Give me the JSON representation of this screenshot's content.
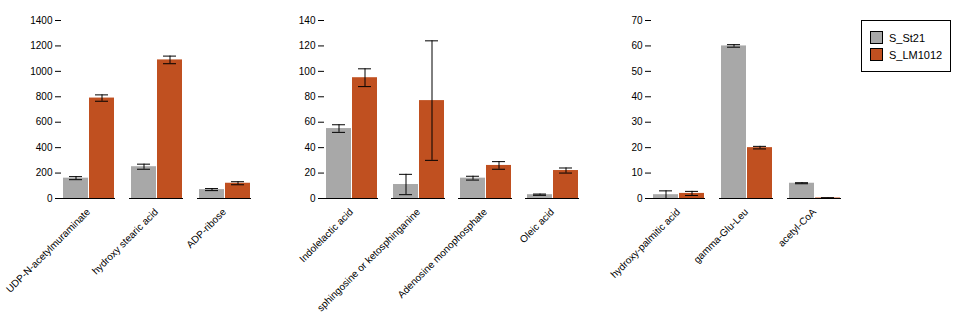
{
  "chart_data": [
    {
      "type": "bar",
      "categories": [
        "UDP-N-acetylmuraminate",
        "hydroxy stearic acid",
        "ADP-ribose"
      ],
      "series": [
        {
          "name": "S_St21",
          "color": "#a8a8a8",
          "values": [
            160,
            250,
            70
          ],
          "errors": [
            12,
            20,
            8
          ]
        },
        {
          "name": "S_LM1012",
          "color": "#c05020",
          "values": [
            790,
            1090,
            120
          ],
          "errors": [
            25,
            30,
            12
          ]
        }
      ],
      "ylim": [
        0,
        1400
      ],
      "yticks": [
        0,
        200,
        400,
        600,
        800,
        1000,
        1200,
        1400
      ],
      "legend": false
    },
    {
      "type": "bar",
      "categories": [
        "Indolelactic acid",
        "sphingosine or ketosphinganine",
        "Adenosine monophosphate",
        "Oleic acid"
      ],
      "series": [
        {
          "name": "S_St21",
          "color": "#a8a8a8",
          "values": [
            55,
            11,
            16,
            3
          ],
          "errors": [
            3,
            8,
            1.5,
            0.5
          ]
        },
        {
          "name": "S_LM1012",
          "color": "#c05020",
          "values": [
            95,
            77,
            26,
            22
          ],
          "errors": [
            7,
            47,
            3,
            2
          ]
        }
      ],
      "ylim": [
        0,
        140
      ],
      "yticks": [
        0,
        20,
        40,
        60,
        80,
        100,
        120,
        140
      ],
      "legend": false
    },
    {
      "type": "bar",
      "categories": [
        "hydroxy-palmitic acid",
        "gamma-Glu-Leu",
        "acetyl-CoA"
      ],
      "series": [
        {
          "name": "S_St21",
          "color": "#a8a8a8",
          "values": [
            1.5,
            60,
            6
          ],
          "errors": [
            1.5,
            0.5,
            0.2
          ]
        },
        {
          "name": "S_LM1012",
          "color": "#c05020",
          "values": [
            2,
            20,
            0.2
          ],
          "errors": [
            0.8,
            0.5,
            0.1
          ]
        }
      ],
      "ylim": [
        0,
        70
      ],
      "yticks": [
        0,
        10,
        20,
        30,
        40,
        50,
        60,
        70
      ],
      "legend": "right"
    }
  ]
}
